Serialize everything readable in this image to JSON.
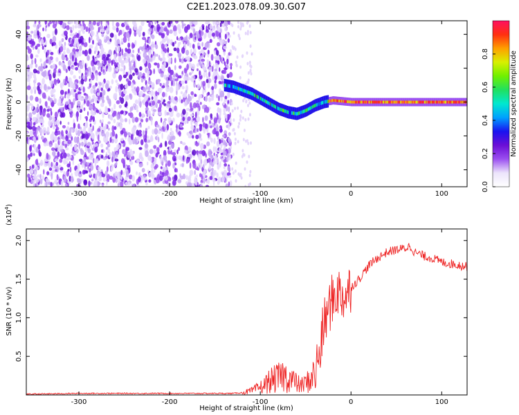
{
  "title": "C2E1.2023.078.09.30.G07",
  "chart_data": [
    {
      "type": "heatmap",
      "xlabel": "Height of straight line (km)",
      "ylabel": "Frequency (Hz)",
      "xlim": [
        -358,
        128
      ],
      "ylim": [
        -50,
        48
      ],
      "x_ticks": [
        -300,
        -200,
        -100,
        0,
        100
      ],
      "y_ticks": [
        -40,
        -20,
        0,
        20,
        40
      ],
      "noise_region_x": [
        -358,
        -132
      ],
      "signal_track": {
        "x": [
          -140,
          -130,
          -120,
          -110,
          -100,
          -90,
          -80,
          -70,
          -60,
          -50,
          -40,
          -30,
          -20,
          -10,
          0,
          20,
          40,
          60,
          80,
          100,
          128
        ],
        "freq": [
          10,
          9,
          7,
          5,
          2,
          -1,
          -4,
          -6,
          -7,
          -5,
          -2,
          0,
          1,
          0.5,
          0,
          0,
          0,
          0,
          0,
          0,
          0
        ]
      },
      "colorbar": {
        "label": "Normalized spectral amplitude",
        "ticks": [
          "0.0",
          "0.2",
          "0.4",
          "0.6",
          "0.8"
        ],
        "colors": [
          "#ffffff",
          "#ece4fb",
          "#9b50f0",
          "#6b0ed6",
          "#1a12f0",
          "#00a0ff",
          "#00e8d0",
          "#20e060",
          "#70f000",
          "#d8f000",
          "#ffa000",
          "#ff3010",
          "#ff1060"
        ]
      }
    },
    {
      "type": "line",
      "xlabel": "Height of straight line (km)",
      "ylabel": "SNR (10 * v/v)",
      "scale_label": "(x10",
      "scale_exp": "4",
      "scale_close": ")",
      "xlim": [
        -358,
        128
      ],
      "ylim": [
        0.0,
        2.15
      ],
      "x_ticks": [
        -300,
        -200,
        -100,
        0,
        100
      ],
      "y_ticks": [
        "0.5",
        "1.0",
        "1.5",
        "2.0"
      ],
      "color": "#ee2222",
      "series": [
        {
          "x": [
            -358,
            -300,
            -200,
            -150,
            -130,
            -120,
            -110,
            -100,
            -95,
            -90,
            -85,
            -80,
            -75,
            -70,
            -65,
            -60,
            -55,
            -50,
            -45,
            -40,
            -35,
            -30,
            -25,
            -20,
            -15,
            -10,
            -5,
            0,
            5,
            10,
            20,
            30,
            40,
            50,
            60,
            65,
            70,
            80,
            90,
            100,
            110,
            120,
            128
          ],
          "y": [
            0.01,
            0.02,
            0.02,
            0.02,
            0.02,
            0.03,
            0.05,
            0.1,
            0.13,
            0.18,
            0.2,
            0.22,
            0.25,
            0.22,
            0.2,
            0.15,
            0.12,
            0.15,
            0.2,
            0.28,
            0.5,
            0.9,
            1.1,
            1.25,
            1.35,
            1.28,
            1.3,
            1.4,
            1.45,
            1.52,
            1.68,
            1.78,
            1.85,
            1.88,
            1.9,
            1.93,
            1.85,
            1.8,
            1.77,
            1.72,
            1.7,
            1.68,
            1.66
          ]
        }
      ]
    }
  ]
}
